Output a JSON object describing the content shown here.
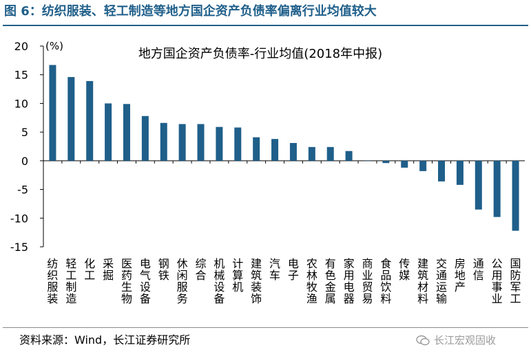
{
  "figure_title": "图 6：纺织服装、轻工制造等地方国企资产负债率偏离行业均值较大",
  "source": "资料来源：Wind，长江证券研究所",
  "watermark": "长江宏观固收",
  "colors": {
    "accent": "#1f5f8a",
    "bar": "#1f5f8a"
  },
  "chart_data": {
    "type": "bar",
    "title": "地方国企资产负债率-行业均值(2018年中报)",
    "unit_label": "(%)",
    "ylim": [
      -15,
      20
    ],
    "yticks": [
      20,
      15,
      10,
      5,
      0,
      -5,
      -10,
      -15
    ],
    "categories": [
      "纺织服装",
      "轻工制造",
      "化工",
      "采掘",
      "医药生物",
      "电气设备",
      "钢铁",
      "休闲服务",
      "综合",
      "机械设备",
      "计算机",
      "建筑装饰",
      "汽车",
      "电子",
      "农林牧渔",
      "有色金属",
      "家用电器",
      "商业贸易",
      "食品饮料",
      "传媒",
      "建筑材料",
      "交通运输",
      "房地产",
      "通信",
      "公用事业",
      "国防军工"
    ],
    "values": [
      16.7,
      14.6,
      13.9,
      10.0,
      9.9,
      7.8,
      6.6,
      6.4,
      6.4,
      5.9,
      5.8,
      4.1,
      3.8,
      3.1,
      2.4,
      2.4,
      1.7,
      0.0,
      -0.4,
      -1.2,
      -1.8,
      -3.6,
      -4.2,
      -8.5,
      -9.8,
      -12.2
    ]
  }
}
